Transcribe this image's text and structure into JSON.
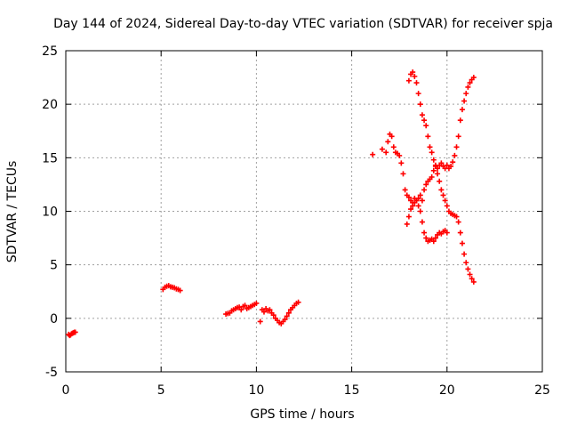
{
  "chart_data": {
    "type": "scatter",
    "title": "Day 144 of 2024, Sidereal Day-to-day VTEC variation (SDTVAR) for receiver spja",
    "xlabel": "GPS time / hours",
    "ylabel": "SDTVAR / TECUs",
    "xlim": [
      0,
      25
    ],
    "ylim": [
      -5,
      25
    ],
    "xticks": [
      "0",
      "5",
      "10",
      "15",
      "20",
      "25"
    ],
    "yticks": [
      "-5",
      "0",
      "5",
      "10",
      "15",
      "20",
      "25"
    ],
    "grid": true,
    "marker": "+",
    "color": "#ff0000",
    "series": [
      {
        "x": [
          0.15,
          0.2,
          0.25,
          0.3,
          0.35,
          0.4,
          0.45,
          0.5
        ],
        "y": [
          -1.5,
          -1.6,
          -1.55,
          -1.45,
          -1.4,
          -1.35,
          -1.3,
          -1.3
        ]
      },
      {
        "x": [
          5.1,
          5.2,
          5.3,
          5.4,
          5.5,
          5.6,
          5.7,
          5.8,
          5.9,
          6.0
        ],
        "y": [
          2.7,
          2.9,
          3.0,
          3.05,
          2.95,
          2.9,
          2.85,
          2.75,
          2.7,
          2.6
        ]
      },
      {
        "x": [
          8.4,
          8.5,
          8.6,
          8.7,
          8.8,
          8.9,
          9.0,
          9.1,
          9.2,
          9.3,
          9.4,
          9.5,
          9.6,
          9.7,
          9.8,
          9.9,
          10.0
        ],
        "y": [
          0.4,
          0.45,
          0.5,
          0.7,
          0.8,
          0.9,
          1.0,
          1.05,
          0.8,
          1.1,
          1.2,
          0.9,
          1.0,
          1.1,
          1.2,
          1.3,
          1.4
        ]
      },
      {
        "x": [
          10.2,
          10.3,
          10.4,
          10.5,
          10.6,
          10.7,
          10.8,
          10.9,
          11.0,
          11.1,
          11.2,
          11.3,
          11.4,
          11.5,
          11.6,
          11.7,
          11.8,
          11.9,
          12.0,
          12.1,
          12.2
        ],
        "y": [
          -0.3,
          0.8,
          0.6,
          0.9,
          0.7,
          0.8,
          0.5,
          0.3,
          0.0,
          -0.2,
          -0.4,
          -0.5,
          -0.3,
          -0.1,
          0.2,
          0.5,
          0.8,
          1.0,
          1.2,
          1.4,
          1.5
        ]
      },
      {
        "x": [
          16.1,
          16.6,
          16.8,
          16.9,
          17.0,
          17.1,
          17.2,
          17.3,
          17.4,
          17.5,
          17.6,
          17.7,
          17.8,
          17.9,
          18.0,
          18.1,
          18.2,
          18.3,
          18.4,
          18.5,
          18.6,
          18.7,
          18.8,
          18.9,
          19.0,
          19.1,
          19.2,
          19.3,
          19.4,
          19.5,
          19.6,
          19.7,
          19.8,
          19.9,
          20.0
        ],
        "y": [
          15.3,
          15.8,
          15.5,
          16.5,
          17.2,
          17.0,
          16.0,
          15.5,
          15.4,
          15.2,
          14.5,
          13.5,
          12.0,
          11.5,
          11.3,
          11.0,
          10.8,
          11.2,
          11.0,
          10.5,
          10.0,
          9.0,
          8.0,
          7.5,
          7.2,
          7.3,
          7.4,
          7.2,
          7.5,
          7.8,
          8.0,
          7.9,
          8.1,
          8.2,
          8.0
        ]
      },
      {
        "x": [
          17.9,
          18.0,
          18.1,
          18.2,
          18.3,
          18.4,
          18.5,
          18.6,
          18.7,
          18.8,
          18.9,
          19.0,
          19.1,
          19.2,
          19.3,
          19.4,
          19.5,
          19.6,
          19.7,
          19.8,
          19.9,
          20.0,
          20.1,
          20.2,
          20.3,
          20.4,
          20.5,
          20.6,
          20.7,
          20.8,
          20.9,
          21.0,
          21.1,
          21.2,
          21.3,
          21.4
        ],
        "y": [
          8.8,
          9.5,
          10.2,
          10.5,
          10.8,
          11.0,
          11.2,
          11.5,
          11.0,
          12.0,
          12.5,
          12.8,
          13.0,
          13.2,
          13.8,
          14.3,
          14.0,
          14.3,
          14.5,
          14.2,
          14.0,
          14.3,
          14.0,
          14.2,
          14.6,
          15.2,
          16.0,
          17.0,
          18.5,
          19.5,
          20.3,
          21.0,
          21.6,
          22.0,
          22.3,
          22.5
        ]
      },
      {
        "x": [
          18.0,
          18.1,
          18.2,
          18.3,
          18.4,
          18.5,
          18.6,
          18.7,
          18.8,
          18.9,
          19.0,
          19.1,
          19.2,
          19.3,
          19.4,
          19.5,
          19.6,
          19.7,
          19.8,
          19.9,
          20.0,
          20.1,
          20.2,
          20.3,
          20.4,
          20.5,
          20.6,
          20.7,
          20.8,
          20.9,
          21.0,
          21.1,
          21.2,
          21.3,
          21.4
        ],
        "y": [
          22.2,
          22.8,
          23.0,
          22.6,
          22.0,
          21.0,
          20.0,
          19.0,
          18.5,
          18.0,
          17.0,
          16.0,
          15.5,
          14.8,
          14.2,
          13.5,
          12.8,
          12.0,
          11.5,
          11.0,
          10.5,
          10.0,
          9.8,
          9.7,
          9.6,
          9.5,
          9.0,
          8.0,
          7.0,
          6.0,
          5.2,
          4.6,
          4.1,
          3.7,
          3.4
        ]
      }
    ]
  }
}
